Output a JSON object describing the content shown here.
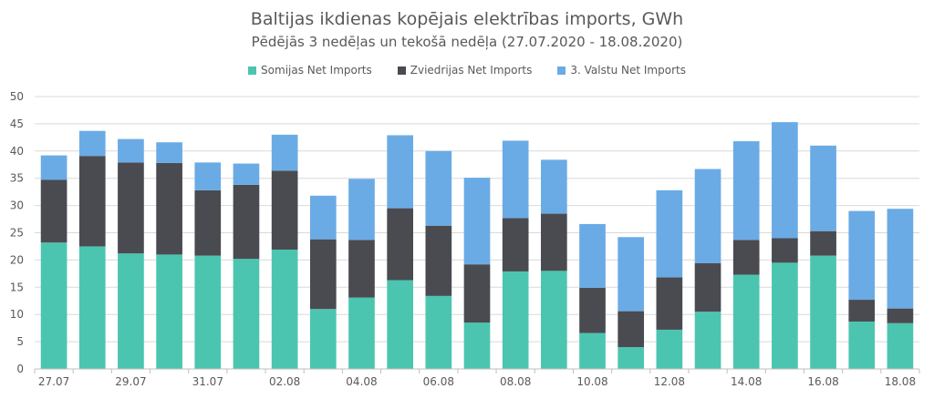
{
  "chart_data": {
    "type": "bar",
    "stacked": true,
    "title": "Baltijas ikdienas kopējais elektrības imports, GWh",
    "subtitle": "Pēdējās 3 nedēļas un tekošā nedēļa (27.07.2020 - 18.08.2020)",
    "ylim": [
      0,
      50
    ],
    "yticks": [
      0,
      5,
      10,
      15,
      20,
      25,
      30,
      35,
      40,
      45,
      50
    ],
    "grid": true,
    "legend_position": "top",
    "categories": [
      "27.07",
      "28.07",
      "29.07",
      "30.07",
      "31.07",
      "01.08",
      "02.08",
      "03.08",
      "04.08",
      "05.08",
      "06.08",
      "07.08",
      "08.08",
      "09.08",
      "10.08",
      "11.08",
      "12.08",
      "13.08",
      "14.08",
      "15.08",
      "16.08",
      "17.08",
      "18.08"
    ],
    "tick_labels": [
      "27.07",
      "",
      "29.07",
      "",
      "31.07",
      "",
      "02.08",
      "",
      "04.08",
      "",
      "06.08",
      "",
      "08.08",
      "",
      "10.08",
      "",
      "12.08",
      "",
      "14.08",
      "",
      "16.08",
      "",
      "18.08"
    ],
    "series": [
      {
        "name": "Somijas Net Imports",
        "color": "#4BC5B0",
        "values": [
          23.2,
          22.5,
          21.2,
          21.0,
          20.8,
          20.2,
          21.9,
          11.0,
          13.1,
          16.3,
          13.4,
          8.5,
          17.9,
          18.0,
          6.6,
          4.0,
          7.2,
          10.5,
          17.3,
          19.5,
          20.8,
          8.7,
          8.4
        ]
      },
      {
        "name": "Zviedrijas Net Imports",
        "color": "#4A4B50",
        "values": [
          11.5,
          16.6,
          16.7,
          16.8,
          12.0,
          13.6,
          14.5,
          12.8,
          10.6,
          13.2,
          12.9,
          10.7,
          9.8,
          10.5,
          8.3,
          6.6,
          9.6,
          8.9,
          6.4,
          4.5,
          4.5,
          4.0,
          2.7
        ]
      },
      {
        "name": "3. Valstu Net Imports",
        "color": "#6AABE5",
        "values": [
          4.5,
          4.6,
          4.3,
          3.8,
          5.1,
          3.9,
          6.6,
          8.0,
          11.2,
          13.4,
          13.7,
          15.9,
          14.2,
          9.9,
          11.7,
          13.6,
          16.0,
          17.3,
          18.1,
          21.3,
          15.7,
          16.3,
          18.3
        ]
      }
    ]
  }
}
